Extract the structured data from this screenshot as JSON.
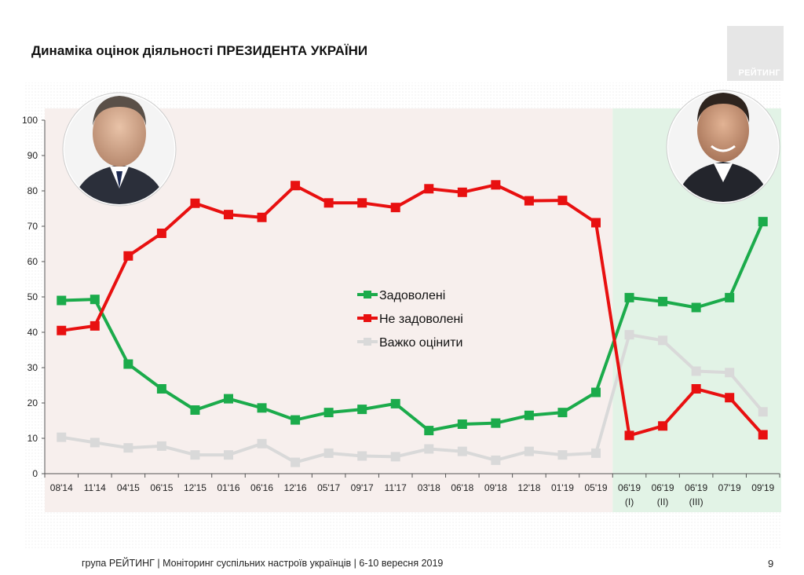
{
  "title": "Динаміка оцінок діяльності ПРЕЗИДЕНТА УКРАЇНИ",
  "logo": "РЕЙТИНГ",
  "footer": "група РЕЙТИНГ | Моніторинг суспільних настроїв українців | 6-10 вересня 2019",
  "page_number": "9",
  "colors": {
    "satisfied": "#1bab4b",
    "dissatisfied": "#e81010",
    "hard": "#d9d9d9",
    "left_bg": "#f7efed",
    "right_bg": "#e2f3e6"
  },
  "chart_data": {
    "type": "line",
    "categories": [
      "08'14",
      "11'14",
      "04'15",
      "06'15",
      "12'15",
      "01'16",
      "06'16",
      "12'16",
      "05'17",
      "09'17",
      "11'17",
      "03'18",
      "06'18",
      "09'18",
      "12'18",
      "01'19",
      "05'19",
      "06'19",
      "06'19",
      "06'19",
      "07'19",
      "09'19"
    ],
    "category_sublabels": [
      "",
      "",
      "",
      "",
      "",
      "",
      "",
      "",
      "",
      "",
      "",
      "",
      "",
      "",
      "",
      "",
      "",
      "(I)",
      "(II)",
      "(III)",
      "",
      ""
    ],
    "series": [
      {
        "name": "Задоволені",
        "values": [
          49,
          49.3,
          31,
          24,
          18,
          21.2,
          18.6,
          15.2,
          17.3,
          18.2,
          19.8,
          12.2,
          14,
          14.3,
          16.5,
          17.3,
          23,
          49.8,
          48.7,
          47,
          49.8,
          71.3
        ]
      },
      {
        "name": "Не задоволені",
        "values": [
          40.5,
          41.8,
          61.6,
          68,
          76.5,
          73.3,
          72.5,
          81.5,
          76.6,
          76.6,
          75.3,
          80.6,
          79.6,
          81.7,
          77.2,
          77.3,
          71,
          10.8,
          13.5,
          24,
          21.5,
          11
        ]
      },
      {
        "name": "Важко оцінити",
        "values": [
          10.3,
          8.8,
          7.3,
          7.8,
          5.3,
          5.3,
          8.5,
          3.2,
          5.8,
          5,
          4.8,
          7,
          6.3,
          3.8,
          6.3,
          5.3,
          5.8,
          39.3,
          37.7,
          29,
          28.6,
          17.5
        ]
      }
    ],
    "yticks": [
      0,
      10,
      20,
      30,
      40,
      50,
      60,
      70,
      80,
      90,
      100
    ],
    "ylim": [
      0,
      100
    ],
    "legend_position": "center"
  }
}
